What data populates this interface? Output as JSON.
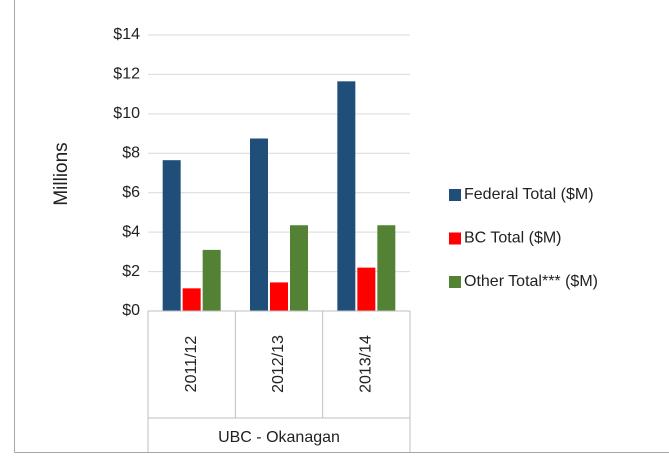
{
  "chart_data": {
    "type": "bar",
    "y_label": "Millions",
    "group_label": "UBC - Okanagan",
    "categories": [
      "2011/12",
      "2012/13",
      "2013/14"
    ],
    "series": [
      {
        "name": "Federal Total ($M)",
        "color": "#1f4e79",
        "values": [
          7.65,
          8.75,
          11.65
        ]
      },
      {
        "name": "BC Total ($M)",
        "color": "#ff0000",
        "values": [
          1.15,
          1.45,
          2.2
        ]
      },
      {
        "name": "Other Total*** ($M)",
        "color": "#548235",
        "values": [
          3.1,
          4.35,
          4.35
        ]
      }
    ],
    "ylim": [
      0,
      14
    ],
    "yticks": [
      {
        "value": 0,
        "label": "$0"
      },
      {
        "value": 2,
        "label": "$2"
      },
      {
        "value": 4,
        "label": "$4"
      },
      {
        "value": 6,
        "label": "$6"
      },
      {
        "value": 8,
        "label": "$8"
      },
      {
        "value": 10,
        "label": "$10"
      },
      {
        "value": 12,
        "label": "$12"
      },
      {
        "value": 14,
        "label": "$14"
      }
    ],
    "grid": true,
    "legend": "right"
  }
}
